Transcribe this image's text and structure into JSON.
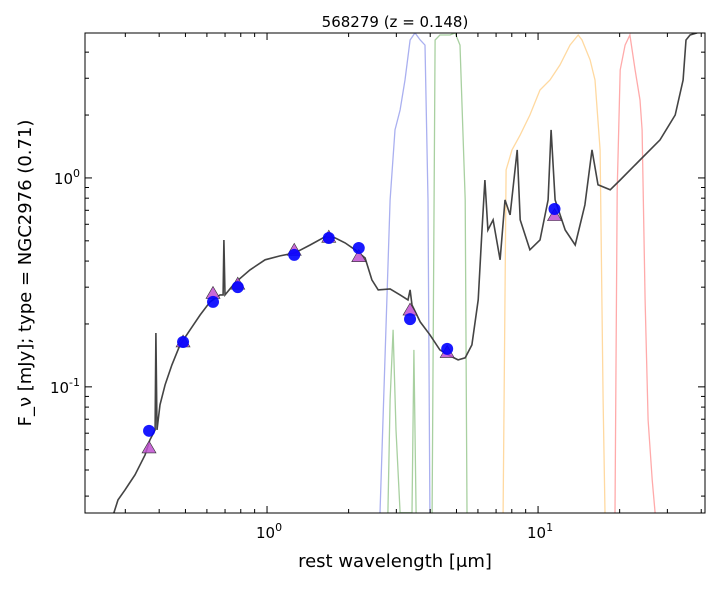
{
  "chart_data": {
    "type": "scatter",
    "title": "568279 (z = 0.148)",
    "xlabel": "rest wavelength [μm]",
    "ylabel": "F_ν [mJy];  type = NGC2976 (0.71)",
    "xscale": "log",
    "yscale": "log",
    "xlim": [
      0.213,
      41.3
    ],
    "ylim": [
      0.0249,
      4.94
    ],
    "x_ticks": [
      {
        "value": 1,
        "base": "10",
        "exp": "0"
      },
      {
        "value": 10,
        "base": "10",
        "exp": "1"
      }
    ],
    "y_ticks": [
      {
        "value": 0.1,
        "base": "10",
        "exp": "-1"
      },
      {
        "value": 1,
        "base": "10",
        "exp": "0"
      }
    ],
    "grid": false,
    "colors": {
      "sed": "#444444",
      "observed": "#0000ff",
      "model": "#c050d0",
      "filter_blue": "#aab0f0",
      "filter_green": "#a8d0a0",
      "filter_orange": "#ffd9a0",
      "filter_red": "#ffaaaa"
    },
    "series": [
      {
        "name": "observed",
        "marker": "circle",
        "x": [
          0.367,
          0.49,
          0.632,
          0.78,
          1.26,
          1.69,
          2.18,
          3.37,
          4.62,
          11.5
        ],
        "y": [
          0.0616,
          0.164,
          0.255,
          0.3,
          0.428,
          0.516,
          0.462,
          0.211,
          0.152,
          0.71
        ]
      },
      {
        "name": "model",
        "marker": "triangle",
        "x": [
          0.367,
          0.49,
          0.632,
          0.78,
          1.26,
          1.69,
          2.18,
          3.37,
          4.62,
          11.5
        ],
        "y": [
          0.051,
          0.164,
          0.28,
          0.31,
          0.45,
          0.52,
          0.42,
          0.233,
          0.146,
          0.66
        ]
      }
    ],
    "curves_log10": {
      "sed": [
        [
          -0.565,
          -1.603
        ],
        [
          -0.55,
          -1.541
        ],
        [
          -0.524,
          -1.493
        ],
        [
          -0.487,
          -1.421
        ],
        [
          -0.45,
          -1.325
        ],
        [
          -0.432,
          -1.254
        ],
        [
          -0.413,
          -1.206
        ],
        [
          -0.41,
          -0.742
        ],
        [
          -0.406,
          -1.206
        ],
        [
          -0.395,
          -1.086
        ],
        [
          -0.376,
          -0.99
        ],
        [
          -0.351,
          -0.895
        ],
        [
          -0.321,
          -0.799
        ],
        [
          -0.284,
          -0.727
        ],
        [
          -0.247,
          -0.656
        ],
        [
          -0.21,
          -0.593
        ],
        [
          -0.173,
          -0.56
        ],
        [
          -0.162,
          -0.56
        ],
        [
          -0.159,
          -0.297
        ],
        [
          -0.155,
          -0.56
        ],
        [
          -0.118,
          -0.502
        ],
        [
          -0.063,
          -0.44
        ],
        [
          -0.007,
          -0.392
        ],
        [
          0.048,
          -0.373
        ],
        [
          0.103,
          -0.359
        ],
        [
          0.159,
          -0.321
        ],
        [
          0.214,
          -0.282
        ],
        [
          0.251,
          -0.287
        ],
        [
          0.288,
          -0.311
        ],
        [
          0.325,
          -0.344
        ],
        [
          0.362,
          -0.383
        ],
        [
          0.387,
          -0.488
        ],
        [
          0.41,
          -0.536
        ],
        [
          0.454,
          -0.531
        ],
        [
          0.491,
          -0.56
        ],
        [
          0.52,
          -0.584
        ],
        [
          0.528,
          -0.536
        ],
        [
          0.535,
          -0.608
        ],
        [
          0.565,
          -0.689
        ],
        [
          0.601,
          -0.751
        ],
        [
          0.638,
          -0.823
        ],
        [
          0.675,
          -0.852
        ],
        [
          0.705,
          -0.871
        ],
        [
          0.731,
          -0.861
        ],
        [
          0.756,
          -0.799
        ],
        [
          0.779,
          -0.584
        ],
        [
          0.793,
          -0.249
        ],
        [
          0.804,
          -0.01
        ],
        [
          0.815,
          -0.249
        ],
        [
          0.834,
          -0.201
        ],
        [
          0.86,
          -0.392
        ],
        [
          0.878,
          -0.105
        ],
        [
          0.897,
          -0.177
        ],
        [
          0.923,
          0.134
        ],
        [
          0.934,
          -0.201
        ],
        [
          0.97,
          -0.344
        ],
        [
          1.007,
          -0.297
        ],
        [
          1.037,
          -0.105
        ],
        [
          1.048,
          0.23
        ],
        [
          1.063,
          -0.105
        ],
        [
          1.1,
          -0.249
        ],
        [
          1.137,
          -0.321
        ],
        [
          1.173,
          -0.129
        ],
        [
          1.199,
          0.134
        ],
        [
          1.221,
          -0.033
        ],
        [
          1.266,
          -0.057
        ],
        [
          1.303,
          -0.01
        ],
        [
          1.376,
          0.086
        ],
        [
          1.45,
          0.182
        ],
        [
          1.506,
          0.301
        ],
        [
          1.535,
          0.469
        ],
        [
          1.546,
          0.66
        ],
        [
          1.561,
          0.684
        ],
        [
          1.587,
          0.694
        ]
      ],
      "filter_blue": [
        [
          0.417,
          -1.603
        ],
        [
          0.454,
          -0.105
        ],
        [
          0.472,
          0.23
        ],
        [
          0.491,
          0.325
        ],
        [
          0.509,
          0.469
        ],
        [
          0.528,
          0.66
        ],
        [
          0.546,
          0.694
        ],
        [
          0.565,
          0.66
        ],
        [
          0.583,
          0.636
        ],
        [
          0.594,
          -0.105
        ],
        [
          0.601,
          -1.603
        ]
      ],
      "filter_green": [
        [
          0.609,
          -1.603
        ],
        [
          0.62,
          0.66
        ],
        [
          0.638,
          0.684
        ],
        [
          0.675,
          0.684
        ],
        [
          0.694,
          0.694
        ],
        [
          0.712,
          0.636
        ],
        [
          0.731,
          -0.105
        ],
        [
          0.738,
          -1.603
        ]
      ],
      "filter_green_low": [
        [
          0.446,
          -1.603
        ],
        [
          0.454,
          -1.062
        ],
        [
          0.465,
          -0.727
        ],
        [
          0.476,
          -1.206
        ],
        [
          0.491,
          -1.603
        ],
        [
          0.535,
          -1.603
        ],
        [
          0.542,
          -0.823
        ],
        [
          0.55,
          -1.603
        ]
      ],
      "filter_orange": [
        [
          0.871,
          -1.603
        ],
        [
          0.882,
          0.038
        ],
        [
          0.904,
          0.134
        ],
        [
          0.934,
          0.206
        ],
        [
          0.97,
          0.301
        ],
        [
          1.007,
          0.421
        ],
        [
          1.044,
          0.469
        ],
        [
          1.081,
          0.541
        ],
        [
          1.118,
          0.636
        ],
        [
          1.148,
          0.684
        ],
        [
          1.162,
          0.66
        ],
        [
          1.192,
          0.565
        ],
        [
          1.21,
          0.469
        ],
        [
          1.229,
          0.134
        ],
        [
          1.24,
          -1.062
        ],
        [
          1.247,
          -1.603
        ]
      ],
      "filter_red": [
        [
          1.284,
          -1.603
        ],
        [
          1.292,
          -0.057
        ],
        [
          1.303,
          0.517
        ],
        [
          1.321,
          0.636
        ],
        [
          1.339,
          0.684
        ],
        [
          1.358,
          0.517
        ],
        [
          1.376,
          0.373
        ],
        [
          1.384,
          0.23
        ],
        [
          1.395,
          -0.584
        ],
        [
          1.406,
          -1.158
        ],
        [
          1.421,
          -1.445
        ],
        [
          1.432,
          -1.603
        ]
      ]
    }
  }
}
